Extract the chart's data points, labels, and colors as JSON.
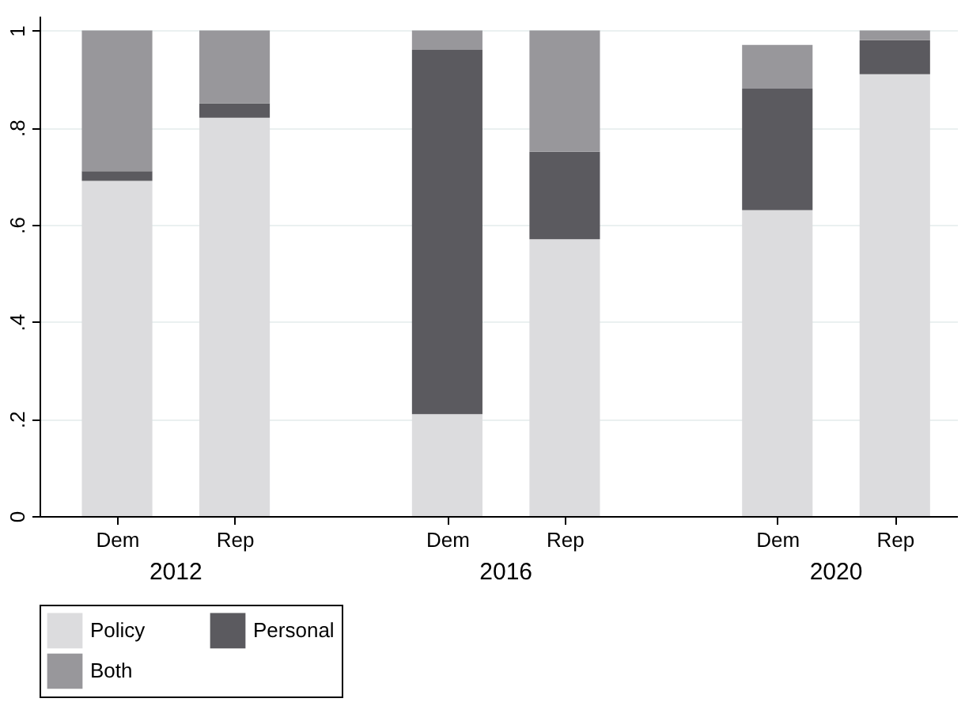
{
  "chart_data": {
    "type": "bar",
    "stacked": true,
    "categories": [
      "Dem",
      "Rep",
      "Dem",
      "Rep",
      "Dem",
      "Rep"
    ],
    "annotations": [
      "2012",
      "2016",
      "2020"
    ],
    "series": [
      {
        "name": "Policy",
        "color": "#dcdcde",
        "values": [
          0.69,
          0.82,
          0.21,
          0.57,
          0.63,
          0.91
        ]
      },
      {
        "name": "Personal",
        "color": "#5b5a5f",
        "values": [
          0.02,
          0.03,
          0.75,
          0.18,
          0.25,
          0.07
        ]
      },
      {
        "name": "Both",
        "color": "#98979b",
        "values": [
          0.29,
          0.15,
          0.04,
          0.25,
          0.09,
          0.02
        ]
      }
    ],
    "ylim": [
      0,
      1.03
    ],
    "yticks": [
      0,
      {
        "value": 0.2,
        "label": ".2"
      },
      {
        "value": 0.4,
        "label": ".4"
      },
      {
        "value": 0.6,
        "label": ".6"
      },
      {
        "value": 0.8,
        "label": ".8"
      },
      1
    ],
    "grid": "y",
    "legend": "bottom"
  }
}
